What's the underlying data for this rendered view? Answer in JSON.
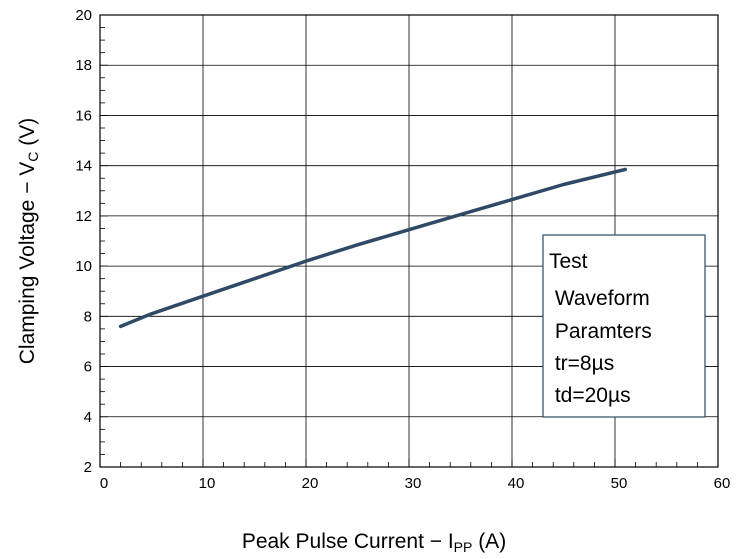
{
  "chart_data": {
    "type": "line",
    "xlabel": {
      "main": "Peak Pulse Current − I",
      "sub": "PP",
      "unit": " (A)"
    },
    "ylabel": {
      "main": "Clamping Voltage − V",
      "sub": "C",
      "unit": " (V)"
    },
    "xlim": [
      0,
      60
    ],
    "ylim": [
      2,
      20
    ],
    "x_ticks": [
      0,
      10,
      20,
      30,
      40,
      50,
      60
    ],
    "y_ticks": [
      2,
      4,
      6,
      8,
      10,
      12,
      14,
      16,
      18,
      20
    ],
    "grid": true,
    "series": [
      {
        "color": "#2e4a66",
        "x": [
          2,
          5,
          10,
          15,
          20,
          25,
          30,
          35,
          40,
          45,
          51
        ],
        "y": [
          7.6,
          8.1,
          8.8,
          9.5,
          10.2,
          10.85,
          11.45,
          12.05,
          12.65,
          13.25,
          13.85
        ]
      }
    ],
    "annotation": {
      "lines": [
        "Test",
        " Waveform",
        " Paramters",
        " tr=8µs",
        " td=20µs"
      ]
    }
  }
}
